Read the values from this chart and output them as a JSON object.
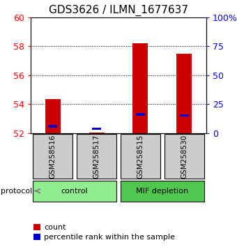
{
  "title": "GDS3626 / ILMN_1677637",
  "samples": [
    "GSM258516",
    "GSM258517",
    "GSM258515",
    "GSM258530"
  ],
  "red_values": [
    54.35,
    52.02,
    58.2,
    57.5
  ],
  "blue_values": [
    52.48,
    52.3,
    53.28,
    53.22
  ],
  "y_min": 52,
  "y_max": 60,
  "y_ticks_left": [
    52,
    54,
    56,
    58,
    60
  ],
  "y_ticks_right": [
    0,
    25,
    50,
    75,
    100
  ],
  "y_right_labels": [
    "0",
    "25",
    "50",
    "75",
    "100%"
  ],
  "red_color": "#cc0000",
  "blue_color": "#0000cc",
  "bar_bottom": 52.0,
  "label_count": "count",
  "label_percentile": "percentile rank within the sample",
  "protocol_label": "protocol",
  "sample_box_color": "#cccccc",
  "group_control_color": "#90ee90",
  "group_mif_color": "#50c850",
  "title_fontsize": 11,
  "tick_fontsize": 9
}
